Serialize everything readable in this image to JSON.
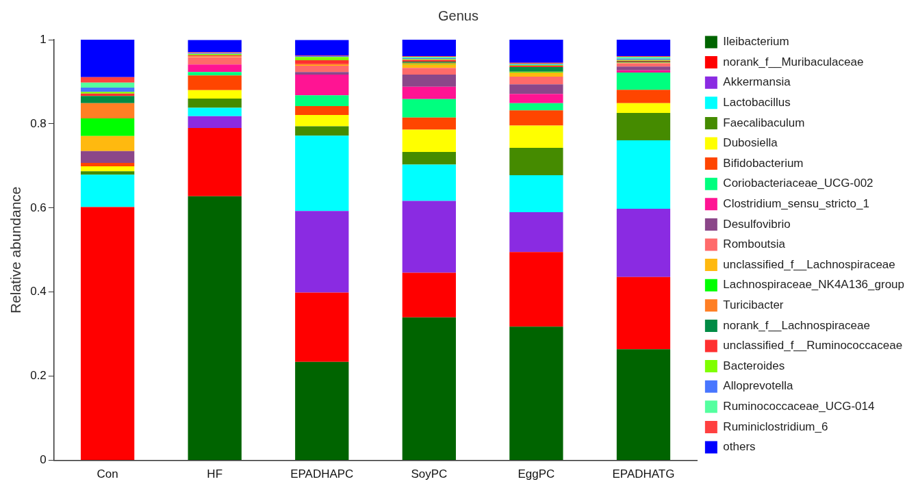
{
  "chart_data": {
    "type": "bar",
    "title": "Genus",
    "ylabel": "Relative abundance",
    "stacked": true,
    "grid": false,
    "legend": "right",
    "ylim": [
      0,
      1
    ],
    "yticks": [
      0,
      0.2,
      0.4,
      0.6,
      0.8,
      1
    ],
    "categories": [
      "Con",
      "HF",
      "EPADHAPC",
      "SoyPC",
      "EggPC",
      "EPADHATG"
    ],
    "series": [
      {
        "name": "Ileibacterium",
        "color": "#006400",
        "values": [
          0,
          0.628,
          0.234,
          0.34,
          0.318,
          0.264
        ]
      },
      {
        "name": "norank_f__Muribaculaceae",
        "color": "#ff0000",
        "values": [
          0.602,
          0.162,
          0.165,
          0.106,
          0.177,
          0.172
        ]
      },
      {
        "name": "Akkermansia",
        "color": "#8a2be2",
        "values": [
          0,
          0.028,
          0.194,
          0.171,
          0.095,
          0.162
        ]
      },
      {
        "name": "Lactobacillus",
        "color": "#00ffff",
        "values": [
          0.077,
          0.02,
          0.179,
          0.086,
          0.088,
          0.163
        ]
      },
      {
        "name": "Faecalibaculum",
        "color": "#458b00",
        "values": [
          0.008,
          0.022,
          0.022,
          0.03,
          0.065,
          0.065
        ]
      },
      {
        "name": "Dubosiella",
        "color": "#ffff00",
        "values": [
          0.012,
          0.02,
          0.027,
          0.053,
          0.053,
          0.023
        ]
      },
      {
        "name": "Bifidobacterium",
        "color": "#ff4500",
        "values": [
          0.008,
          0.035,
          0.021,
          0.029,
          0.036,
          0.032
        ]
      },
      {
        "name": "Coriobacteriaceae_UCG-002",
        "color": "#00ff7f",
        "values": [
          0,
          0.008,
          0.026,
          0.044,
          0.017,
          0.041
        ]
      },
      {
        "name": "Clostridium_sensu_stricto_1",
        "color": "#ff1493",
        "values": [
          0,
          0.018,
          0.049,
          0.029,
          0.022,
          0.005
        ]
      },
      {
        "name": "Desulfovibrio",
        "color": "#8b4789",
        "values": [
          0.028,
          0,
          0.006,
          0.029,
          0.023,
          0.009
        ]
      },
      {
        "name": "Romboutsia",
        "color": "#ff6a6a",
        "values": [
          0,
          0.017,
          0.015,
          0.016,
          0.018,
          0.008
        ]
      },
      {
        "name": "unclassified_f__Lachnospiraceae",
        "color": "#ffb90f",
        "values": [
          0.036,
          0.001,
          0.002,
          0.009,
          0.01,
          0.001
        ]
      },
      {
        "name": "Lachnospiraceae_NK4A136_group",
        "color": "#00ff00",
        "values": [
          0.042,
          0,
          0,
          0.001,
          0.001,
          0
        ]
      },
      {
        "name": "Turicibacter",
        "color": "#ff7f24",
        "values": [
          0.036,
          0.001,
          0.002,
          0.002,
          0.001,
          0.001
        ]
      },
      {
        "name": "norank_f__Lachnospiraceae",
        "color": "#008b45",
        "values": [
          0.017,
          null,
          0,
          0.003,
          0.011,
          0.002
        ]
      },
      {
        "name": "unclassified_f__Ruminococcaceae",
        "color": "#ff3030",
        "values": [
          0.006,
          0.003,
          0.009,
          0.004,
          0.003,
          0.002
        ]
      },
      {
        "name": "Bacteroides",
        "color": "#7fff00",
        "values": [
          0.004,
          0.003,
          0.008,
          0.002,
          0.002,
          0.002
        ]
      },
      {
        "name": "Alloprevotella",
        "color": "#4876ff",
        "values": [
          0.01,
          0.001,
          0.002,
          0.002,
          0.001,
          0.003
        ]
      },
      {
        "name": "Ruminococcaceae_UCG-014",
        "color": "#54ff9f",
        "values": [
          0.012,
          0.001,
          null,
          0.003,
          0.002,
          0.004
        ]
      },
      {
        "name": "Ruminiclostridium_6",
        "color": "#ff4040",
        "values": [
          0.013,
          0.002,
          0.001,
          0.002,
          0.002,
          0.002
        ]
      },
      {
        "name": "others",
        "color": "#0000ff",
        "values": [
          0.089,
          0.029,
          0.037,
          0.039,
          0.055,
          0.039
        ]
      }
    ]
  }
}
